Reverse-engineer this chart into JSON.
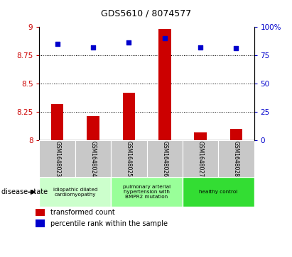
{
  "title": "GDS5610 / 8074577",
  "samples": [
    "GSM1648023",
    "GSM1648024",
    "GSM1648025",
    "GSM1648026",
    "GSM1648027",
    "GSM1648028"
  ],
  "bar_values": [
    8.32,
    8.21,
    8.42,
    8.98,
    8.07,
    8.1
  ],
  "scatter_values": [
    85,
    82,
    86,
    90,
    82,
    81
  ],
  "bar_color": "#cc0000",
  "scatter_color": "#0000cc",
  "ylim_left": [
    8.0,
    9.0
  ],
  "ylim_right": [
    0,
    100
  ],
  "yticks_left": [
    8.0,
    8.25,
    8.5,
    8.75,
    9.0
  ],
  "ytick_labels_left": [
    "8",
    "8.25",
    "8.5",
    "8.75",
    "9"
  ],
  "yticks_right": [
    0,
    25,
    50,
    75,
    100
  ],
  "ytick_labels_right": [
    "0",
    "25",
    "50",
    "75",
    "100%"
  ],
  "grid_values": [
    8.25,
    8.5,
    8.75
  ],
  "group_configs": [
    {
      "start": 0,
      "end": 1,
      "color": "#ccffcc",
      "label": "idiopathic dilated\ncardiomyopathy"
    },
    {
      "start": 2,
      "end": 3,
      "color": "#99ff99",
      "label": "pulmonary arterial\nhypertension with\nBMPR2 mutation"
    },
    {
      "start": 4,
      "end": 5,
      "color": "#33dd33",
      "label": "healthy control"
    }
  ],
  "disease_state_label": "disease state",
  "legend_bar_label": "transformed count",
  "legend_scatter_label": "percentile rank within the sample",
  "bg_color_plot": "#ffffff",
  "bg_color_xtick": "#c8c8c8",
  "title_fontsize": 9
}
